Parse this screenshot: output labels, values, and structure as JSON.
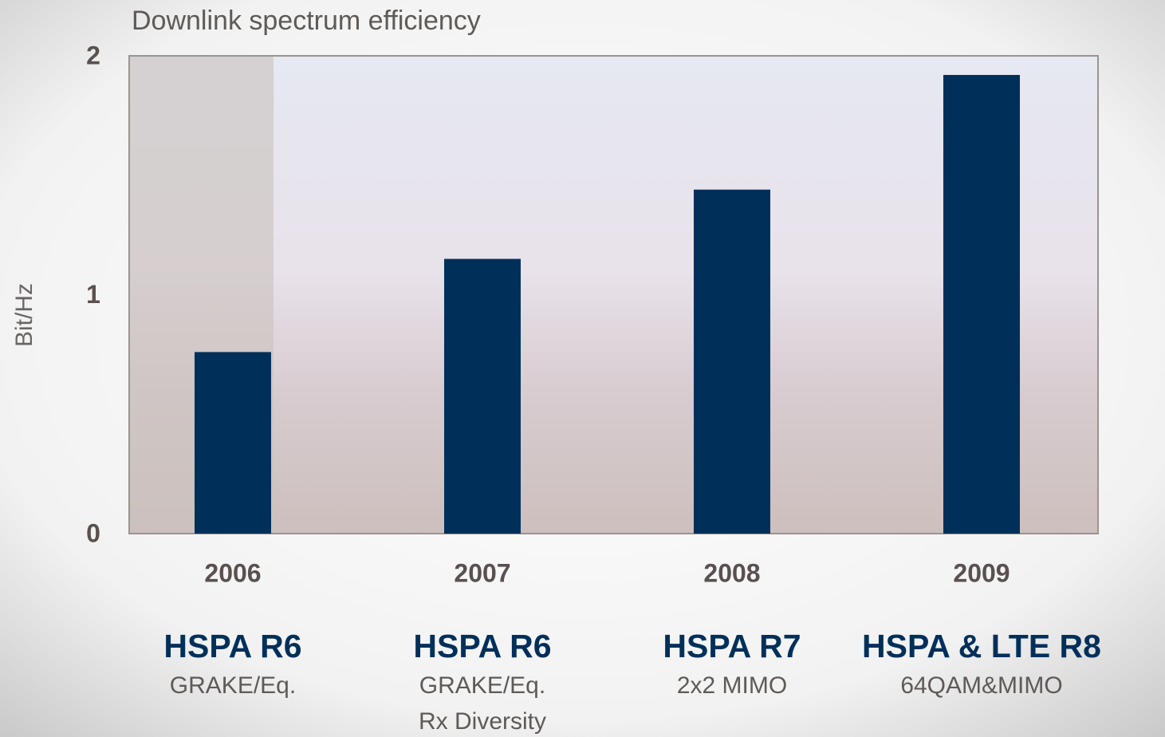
{
  "chart_data": {
    "type": "bar",
    "title": "Downlink spectrum efficiency",
    "y_label": "Bit/Hz",
    "categories": [
      "2006",
      "2007",
      "2008",
      "2009"
    ],
    "values": [
      0.76,
      1.15,
      1.44,
      1.92
    ],
    "color": "#00305a",
    "releases": [
      "HSPA R6",
      "HSPA R6",
      "HSPA R7",
      "HSPA & LTE R8"
    ],
    "features": [
      [
        "GRAKE/Eq."
      ],
      [
        "GRAKE/Eq.",
        "Rx Diversity"
      ],
      [
        "2x2 MIMO"
      ],
      [
        "64QAM&MIMO"
      ]
    ],
    "ylim": [
      0,
      2
    ],
    "yticks": [
      0,
      1,
      2
    ],
    "grid": false
  }
}
